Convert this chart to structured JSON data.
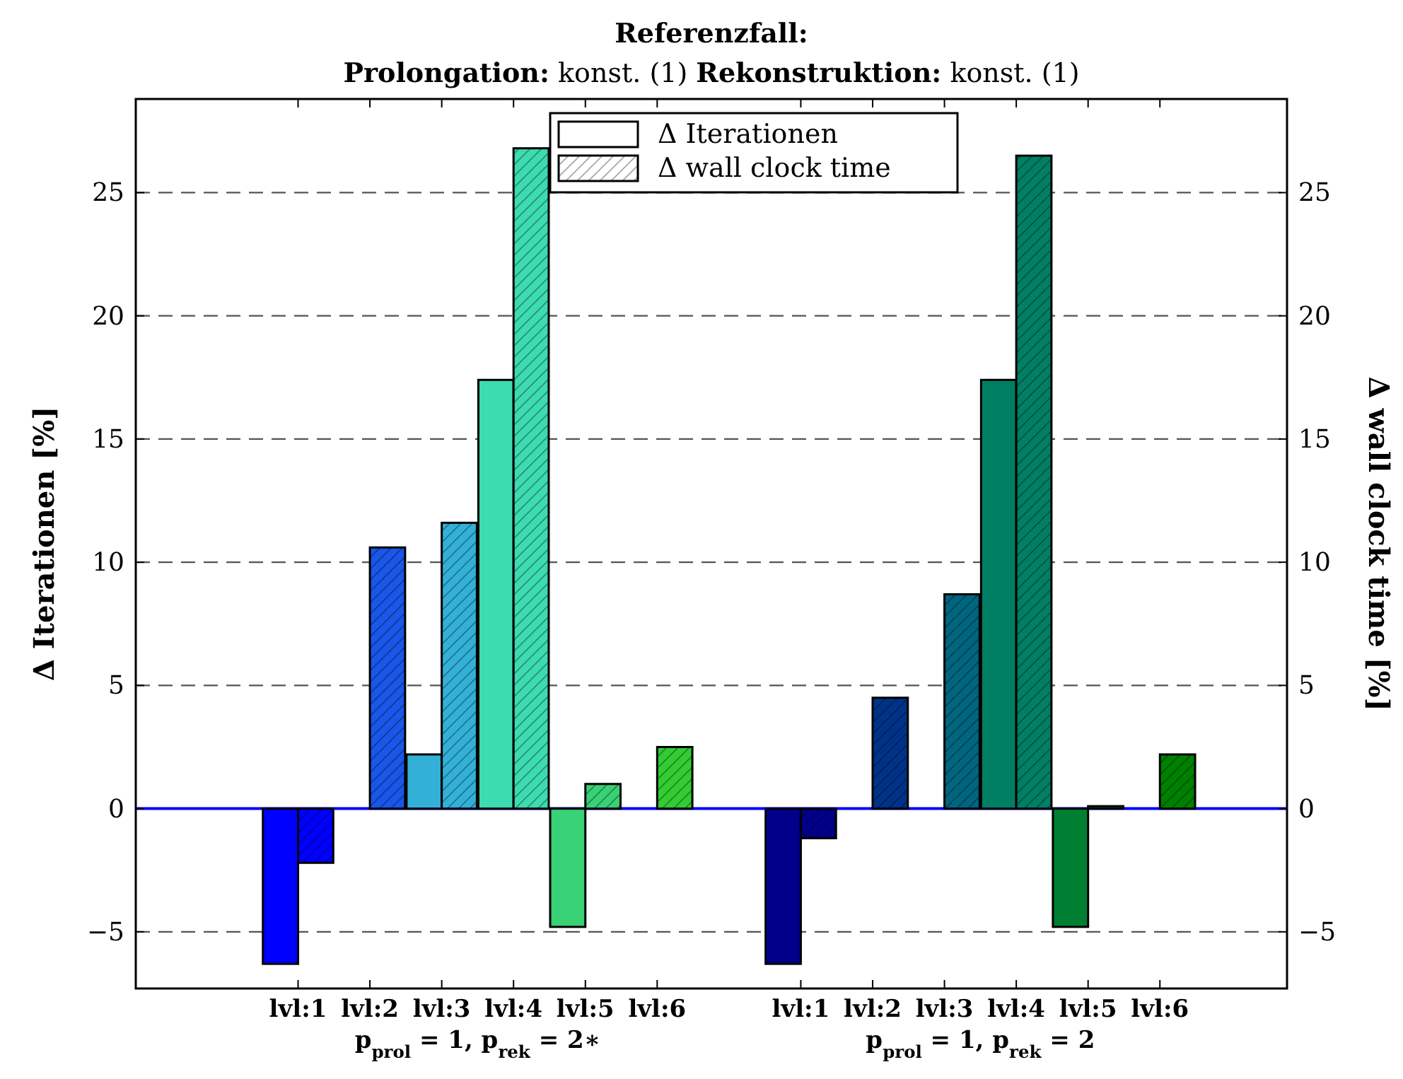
{
  "chart_data": {
    "type": "bar",
    "title": "Referenzfall:",
    "subtitle": "Prolongation: konst. (1) Rekonstruktion: konst. (1)",
    "ylabel": "Δ Iterationen [%]",
    "y2label": "Δ wall clock time [%]",
    "categories": [
      "lvl:1",
      "lvl:2",
      "lvl:3",
      "lvl:4",
      "lvl:5",
      "lvl:6",
      null,
      "lvl:1",
      "lvl:2",
      "lvl:3",
      "lvl:4",
      "lvl:5",
      "lvl:6"
    ],
    "series": [
      {
        "name": "Δ Iterationen",
        "colors": [
          "#0000ff",
          "#1a56e8",
          "#33b0d8",
          "#3ddbb0",
          "#38d175",
          "#33cc33",
          null,
          "#00008b",
          "#003388",
          "#006680",
          "#007f64",
          "#007f33",
          "#008000"
        ],
        "values": [
          -6.3,
          0,
          2.2,
          17.4,
          -4.8,
          0,
          null,
          -6.3,
          0,
          0,
          17.4,
          -4.8,
          0
        ]
      },
      {
        "name": "Δ wall clock time",
        "colors": [
          "#0000ff",
          "#1a56e8",
          "#33b0d8",
          "#3ddbb0",
          "#38d175",
          "#33cc33",
          null,
          "#00008b",
          "#003388",
          "#006680",
          "#007f64",
          "#007f33",
          "#008000"
        ],
        "values": [
          -2.2,
          10.6,
          11.6,
          26.8,
          1.0,
          2.5,
          null,
          -1.2,
          4.5,
          8.7,
          26.5,
          0.1,
          2.2
        ]
      }
    ],
    "ylim": [
      -7.3,
      28.8
    ],
    "yticks": [
      {
        "value": -5,
        "label": "−5"
      },
      0,
      5,
      10,
      15,
      20,
      25
    ],
    "y2lim": [
      -7.3,
      28.8
    ],
    "y2ticks": [
      {
        "value": -5,
        "label": "−5"
      },
      0,
      5,
      10,
      15,
      20,
      25
    ],
    "ref_lines": [
      {
        "axis": "y",
        "value": 0,
        "color": "#0000ff"
      }
    ],
    "annotations": [
      "p$_{prol}$ = 1, p$_{rek}$ = 2∗",
      "p$_{prol}$ = 1, p$_{rek}$ = 2"
    ],
    "grid": "y",
    "legend": "top"
  }
}
